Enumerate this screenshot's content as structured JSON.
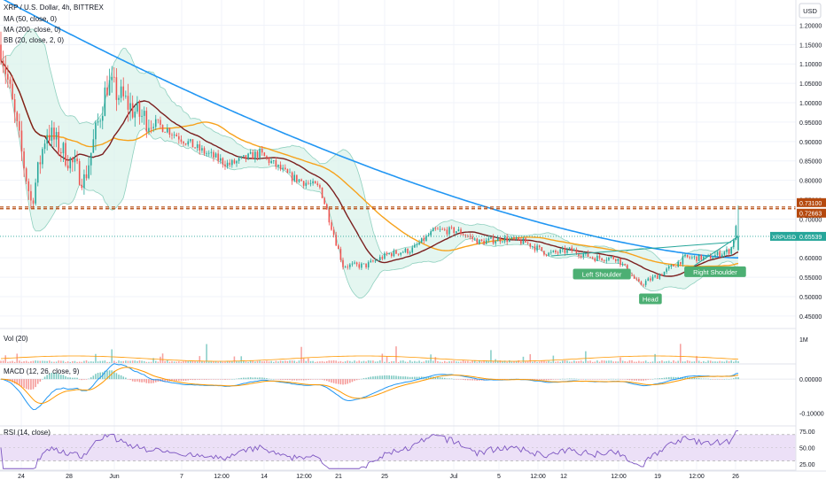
{
  "header": {
    "symbol_title": "XRP / U.S. Dollar, 4h, BITTREX",
    "currency": "USD",
    "indicators": [
      "MA (50, close, 0)",
      "MA (200, close, 0)",
      "BB (20, close, 2, 0)"
    ]
  },
  "panes": {
    "volume_label": "Vol (20)",
    "macd_label": "MACD (12, 26, close, 9)",
    "rsi_label": "RSI (14, close)"
  },
  "colors": {
    "bull": "#26a69a",
    "bear": "#ef5350",
    "ma50": "#f7a21b",
    "ma200": "#2196f3",
    "bb_basis": "#7b1f1f",
    "bb_fill": "#d9f2ea",
    "bb_band": "#8fd0bf",
    "level": "#b5480d",
    "label_green": "#4caf73",
    "rsi_fill": "#ece0f7",
    "rsi_line": "#7e57c2",
    "macd_line": "#2196f3",
    "signal_line": "#ff9800"
  },
  "chart_data": {
    "type": "candlestick",
    "y_range": [
      0.42,
      1.265
    ],
    "y_ticks": [
      {
        "value": 1.2,
        "label": "1.20000"
      },
      {
        "value": 1.15,
        "label": "1.15000"
      },
      {
        "value": 1.1,
        "label": "1.10000"
      },
      {
        "value": 1.05,
        "label": "1.05000"
      },
      {
        "value": 1.0,
        "label": "1.00000"
      },
      {
        "value": 0.95,
        "label": "0.95000"
      },
      {
        "value": 0.9,
        "label": "0.90000"
      },
      {
        "value": 0.85,
        "label": "0.85000"
      },
      {
        "value": 0.8,
        "label": "0.80000"
      },
      {
        "value": 0.75,
        "label": "0.75000"
      },
      {
        "value": 0.7,
        "label": "0.70000"
      },
      {
        "value": 0.6,
        "label": "0.60000"
      },
      {
        "value": 0.55,
        "label": "0.55000"
      },
      {
        "value": 0.5,
        "label": "0.50000"
      },
      {
        "value": 0.45,
        "label": "0.45000"
      }
    ],
    "x_ticks": [
      "24",
      "28",
      "Jun",
      "7",
      "12:00",
      "14",
      "12:00",
      "21",
      "25",
      "Jul",
      "5",
      "12:00",
      "12",
      "12:00",
      "19",
      "12:00",
      "26"
    ],
    "key_points": [
      [
        0,
        1.15
      ],
      [
        4,
        0.74
      ],
      [
        6,
        0.93
      ],
      [
        11,
        0.8
      ],
      [
        14,
        1.05
      ],
      [
        18,
        0.97
      ],
      [
        22,
        0.93
      ],
      [
        26,
        0.88
      ],
      [
        30,
        0.84
      ],
      [
        34,
        0.87
      ],
      [
        38,
        0.81
      ],
      [
        42,
        0.78
      ],
      [
        45,
        0.58
      ],
      [
        48,
        0.58
      ],
      [
        51,
        0.61
      ],
      [
        54,
        0.62
      ],
      [
        57,
        0.67
      ],
      [
        60,
        0.67
      ],
      [
        63,
        0.64
      ],
      [
        66,
        0.65
      ],
      [
        69,
        0.64
      ],
      [
        72,
        0.61
      ],
      [
        75,
        0.62
      ],
      [
        78,
        0.6
      ],
      [
        81,
        0.6
      ],
      [
        84,
        0.53
      ],
      [
        87,
        0.56
      ],
      [
        90,
        0.6
      ],
      [
        93,
        0.6
      ],
      [
        96,
        0.62
      ],
      [
        97,
        0.7
      ]
    ],
    "horizontal_levels": [
      {
        "label": "0.73100",
        "value": 0.731
      },
      {
        "label": "0.72663",
        "value": 0.7266
      }
    ],
    "last_price": {
      "symbol": "XRPUSD",
      "value": "0.65539",
      "price": 0.6554
    },
    "annotations": [
      {
        "text": "Left Shoulder",
        "x": 79,
        "y": 0.572,
        "anchor": "below"
      },
      {
        "text": "Head",
        "x": 85.5,
        "y": 0.508,
        "anchor": "below"
      },
      {
        "text": "Right Shoulder",
        "x": 94,
        "y": 0.578,
        "anchor": "below"
      }
    ],
    "volume": {
      "tick": "1M"
    },
    "macd": {
      "ticks": [
        {
          "value": 0.0,
          "label": "0.00000"
        },
        {
          "value": -0.1,
          "label": "-0.10000"
        }
      ],
      "range": [
        -0.135,
        0.042
      ]
    },
    "rsi": {
      "ticks": [
        {
          "value": 75,
          "label": "75.00"
        },
        {
          "value": 50,
          "label": "50.00"
        },
        {
          "value": 25,
          "label": "25.00"
        }
      ],
      "range": [
        17,
        82
      ],
      "band": [
        30,
        70
      ]
    }
  }
}
